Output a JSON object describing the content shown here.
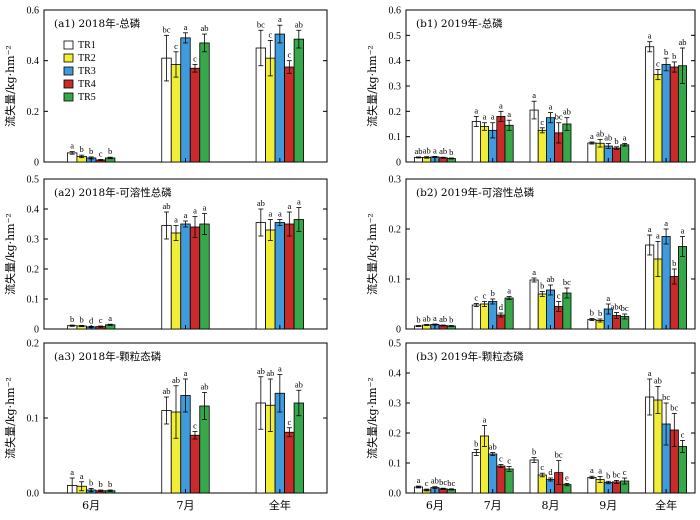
{
  "colors": {
    "TR1": "#ffffff",
    "TR2": "#f2ee38",
    "TR3": "#3f9bdc",
    "TR4": "#c92a2a",
    "TR5": "#36a84a"
  },
  "legend": [
    "TR1",
    "TR2",
    "TR3",
    "TR4",
    "TR5"
  ],
  "ylabel": "流失量/kg·hm⁻²",
  "chart_data": [
    {
      "id": "a1",
      "type": "bar",
      "title": "(a1) 2018年-总磷",
      "categories": [
        "6月",
        "7月",
        "全年"
      ],
      "ylim": [
        0,
        0.6
      ],
      "yticks": [
        0,
        0.2,
        0.4,
        0.6
      ],
      "ytick_labels": [
        "0",
        "0.2",
        "0.4",
        "0.6"
      ],
      "xtick_labels": [],
      "series": [
        {
          "name": "TR1",
          "values": [
            0.036,
            0.41,
            0.45
          ],
          "errors": [
            0.005,
            0.09,
            0.07
          ],
          "letters": [
            "a",
            "bc",
            "bc"
          ]
        },
        {
          "name": "TR2",
          "values": [
            0.022,
            0.385,
            0.41
          ],
          "errors": [
            0.005,
            0.05,
            0.07
          ],
          "letters": [
            "b",
            "c",
            "c"
          ]
        },
        {
          "name": "TR3",
          "values": [
            0.016,
            0.49,
            0.505
          ],
          "errors": [
            0.004,
            0.02,
            0.035
          ],
          "letters": [
            "b",
            "a",
            "a"
          ]
        },
        {
          "name": "TR4",
          "values": [
            0.008,
            0.37,
            0.375
          ],
          "errors": [
            0.002,
            0.015,
            0.025
          ],
          "letters": [
            "c",
            "c",
            "c"
          ]
        },
        {
          "name": "TR5",
          "values": [
            0.016,
            0.47,
            0.485
          ],
          "errors": [
            0.003,
            0.035,
            0.035
          ],
          "letters": [
            "b",
            "ab",
            "ab"
          ]
        }
      ]
    },
    {
      "id": "a2",
      "type": "bar",
      "title": "(a2) 2018年-可溶性总磷",
      "categories": [
        "6月",
        "7月",
        "全年"
      ],
      "ylim": [
        0,
        0.5
      ],
      "yticks": [
        0,
        0.1,
        0.2,
        0.3,
        0.4,
        0.5
      ],
      "ytick_labels": [
        "0",
        "0.1",
        "0.2",
        "0.3",
        "0.4",
        "0.5"
      ],
      "xtick_labels": [],
      "series": [
        {
          "name": "TR1",
          "values": [
            0.011,
            0.345,
            0.355
          ],
          "errors": [
            0.002,
            0.045,
            0.045
          ],
          "letters": [
            "b",
            "ab",
            "ab"
          ]
        },
        {
          "name": "TR2",
          "values": [
            0.01,
            0.32,
            0.33
          ],
          "errors": [
            0.002,
            0.025,
            0.035
          ],
          "letters": [
            "b",
            "a",
            "a"
          ]
        },
        {
          "name": "TR3",
          "values": [
            0.007,
            0.35,
            0.355
          ],
          "errors": [
            0.002,
            0.01,
            0.01
          ],
          "letters": [
            "d",
            "a",
            "a"
          ]
        },
        {
          "name": "TR4",
          "values": [
            0.008,
            0.34,
            0.35
          ],
          "errors": [
            0.002,
            0.035,
            0.04
          ],
          "letters": [
            "c",
            "a",
            "a"
          ]
        },
        {
          "name": "TR5",
          "values": [
            0.014,
            0.35,
            0.365
          ],
          "errors": [
            0.002,
            0.035,
            0.04
          ],
          "letters": [
            "a",
            "a",
            "a"
          ]
        }
      ]
    },
    {
      "id": "a3",
      "type": "bar",
      "title": "(a3) 2018年-颗粒态磷",
      "categories": [
        "6月",
        "7月",
        "全年"
      ],
      "ylim": [
        0,
        0.2
      ],
      "yticks": [
        0,
        0.1,
        0.2
      ],
      "ytick_labels": [
        "0.0",
        "0.1",
        "0.2"
      ],
      "xtick_labels": [
        "6月",
        "7月",
        "全年"
      ],
      "series": [
        {
          "name": "TR1",
          "values": [
            0.01,
            0.11,
            0.12
          ],
          "errors": [
            0.01,
            0.018,
            0.035
          ],
          "letters": [
            "a",
            "ab",
            "ab"
          ]
        },
        {
          "name": "TR2",
          "values": [
            0.009,
            0.108,
            0.117
          ],
          "errors": [
            0.006,
            0.035,
            0.035
          ],
          "letters": [
            "a",
            "ab",
            "ab"
          ]
        },
        {
          "name": "TR3",
          "values": [
            0.004,
            0.13,
            0.133
          ],
          "errors": [
            0.002,
            0.022,
            0.025
          ],
          "letters": [
            "b",
            "a",
            "a"
          ]
        },
        {
          "name": "TR4",
          "values": [
            0.003,
            0.077,
            0.081
          ],
          "errors": [
            0.001,
            0.005,
            0.006
          ],
          "letters": [
            "b",
            "c",
            "c"
          ]
        },
        {
          "name": "TR5",
          "values": [
            0.003,
            0.116,
            0.12
          ],
          "errors": [
            0.001,
            0.018,
            0.017
          ],
          "letters": [
            "b",
            "ab",
            "ab"
          ]
        }
      ]
    },
    {
      "id": "b1",
      "type": "bar",
      "title": "(b1) 2019年-总磷",
      "categories": [
        "6月",
        "7月",
        "8月",
        "9月",
        "全年"
      ],
      "ylim": [
        0,
        0.6
      ],
      "yticks": [
        0,
        0.1,
        0.2,
        0.3,
        0.4,
        0.5,
        0.6
      ],
      "ytick_labels": [
        "0",
        "0.1",
        "0.2",
        "0.3",
        "0.4",
        "0.5",
        "0.6"
      ],
      "xtick_labels": [],
      "series": [
        {
          "name": "TR1",
          "values": [
            0.018,
            0.16,
            0.205,
            0.075,
            0.455
          ],
          "errors": [
            0.002,
            0.02,
            0.035,
            0.004,
            0.02
          ],
          "letters": [
            "ab",
            "a",
            "a",
            "a",
            "a"
          ]
        },
        {
          "name": "TR2",
          "values": [
            0.018,
            0.14,
            0.125,
            0.074,
            0.345
          ],
          "errors": [
            0.003,
            0.015,
            0.01,
            0.015,
            0.02
          ],
          "letters": [
            "ab",
            "a",
            "c",
            "ab",
            "c"
          ]
        },
        {
          "name": "TR3",
          "values": [
            0.02,
            0.125,
            0.175,
            0.063,
            0.385
          ],
          "errors": [
            0.002,
            0.03,
            0.02,
            0.01,
            0.025
          ],
          "letters": [
            "a",
            "a",
            "a",
            "ab",
            "b"
          ]
        },
        {
          "name": "TR4",
          "values": [
            0.017,
            0.18,
            0.115,
            0.055,
            0.375
          ],
          "errors": [
            0.002,
            0.02,
            0.04,
            0.005,
            0.02
          ],
          "letters": [
            "ab",
            "a",
            "bc",
            "b",
            "b"
          ]
        },
        {
          "name": "TR5",
          "values": [
            0.014,
            0.145,
            0.15,
            0.068,
            0.38
          ],
          "errors": [
            0.002,
            0.02,
            0.025,
            0.005,
            0.07
          ],
          "letters": [
            "b",
            "a",
            "ab",
            "a",
            "ab"
          ]
        }
      ]
    },
    {
      "id": "b2",
      "type": "bar",
      "title": "(b2) 2019年-可溶性总磷",
      "categories": [
        "6月",
        "7月",
        "8月",
        "9月",
        "全年"
      ],
      "ylim": [
        0,
        0.3
      ],
      "yticks": [
        0,
        0.1,
        0.2,
        0.3
      ],
      "ytick_labels": [
        "0",
        "0.1",
        "0.2",
        "0.3"
      ],
      "xtick_labels": [],
      "series": [
        {
          "name": "TR1",
          "values": [
            0.006,
            0.048,
            0.098,
            0.019,
            0.168
          ],
          "errors": [
            0.001,
            0.003,
            0.004,
            0.002,
            0.02
          ],
          "letters": [
            "b",
            "c",
            "a",
            "b",
            "a"
          ]
        },
        {
          "name": "TR2",
          "values": [
            0.008,
            0.05,
            0.07,
            0.017,
            0.14
          ],
          "errors": [
            0.001,
            0.005,
            0.005,
            0.003,
            0.035
          ],
          "letters": [
            "ab",
            "c",
            "b",
            "b",
            "a"
          ]
        },
        {
          "name": "TR3",
          "values": [
            0.009,
            0.055,
            0.078,
            0.04,
            0.185
          ],
          "errors": [
            0.001,
            0.005,
            0.01,
            0.01,
            0.015
          ],
          "letters": [
            "a",
            "b",
            "ab",
            "a",
            "a"
          ]
        },
        {
          "name": "TR4",
          "values": [
            0.007,
            0.028,
            0.045,
            0.027,
            0.105
          ],
          "errors": [
            0.001,
            0.004,
            0.01,
            0.006,
            0.015
          ],
          "letters": [
            "ab",
            "d",
            "c",
            "abc",
            "b"
          ]
        },
        {
          "name": "TR5",
          "values": [
            0.006,
            0.062,
            0.072,
            0.025,
            0.165
          ],
          "errors": [
            0.001,
            0.003,
            0.01,
            0.005,
            0.02
          ],
          "letters": [
            "b",
            "a",
            "bc",
            "bc",
            "a"
          ]
        }
      ]
    },
    {
      "id": "b3",
      "type": "bar",
      "title": "(b3) 2019年-颗粒态磷",
      "categories": [
        "6月",
        "7月",
        "8月",
        "9月",
        "全年"
      ],
      "ylim": [
        0,
        0.5
      ],
      "yticks": [
        0,
        0.1,
        0.2,
        0.3,
        0.4,
        0.5
      ],
      "ytick_labels": [
        "0.0",
        "0.1",
        "0.2",
        "0.3",
        "0.4",
        "0.5"
      ],
      "xtick_labels": [
        "6月",
        "7月",
        "8月",
        "9月",
        "全年"
      ],
      "series": [
        {
          "name": "TR1",
          "values": [
            0.02,
            0.135,
            0.11,
            0.052,
            0.32
          ],
          "errors": [
            0.003,
            0.01,
            0.008,
            0.004,
            0.06
          ],
          "letters": [
            "a",
            "b",
            "b",
            "a",
            "a"
          ]
        },
        {
          "name": "TR2",
          "values": [
            0.01,
            0.19,
            0.06,
            0.045,
            0.31
          ],
          "errors": [
            0.003,
            0.035,
            0.006,
            0.01,
            0.045
          ],
          "letters": [
            "c",
            "a",
            "c",
            "a",
            "ab"
          ]
        },
        {
          "name": "TR3",
          "values": [
            0.018,
            0.13,
            0.045,
            0.035,
            0.23
          ],
          "errors": [
            0.003,
            0.005,
            0.005,
            0.004,
            0.07
          ],
          "letters": [
            "ab",
            "ab",
            "d",
            "b",
            "bc"
          ]
        },
        {
          "name": "TR4",
          "values": [
            0.014,
            0.09,
            0.068,
            0.037,
            0.21
          ],
          "errors": [
            0.002,
            0.005,
            0.04,
            0.005,
            0.055
          ],
          "letters": [
            "bc",
            "c",
            "bc",
            "bc",
            "bc"
          ]
        },
        {
          "name": "TR5",
          "values": [
            0.012,
            0.08,
            0.028,
            0.04,
            0.155
          ],
          "errors": [
            0.002,
            0.008,
            0.004,
            0.01,
            0.02
          ],
          "letters": [
            "bc",
            "c",
            "e",
            "c",
            "c"
          ]
        }
      ]
    }
  ]
}
